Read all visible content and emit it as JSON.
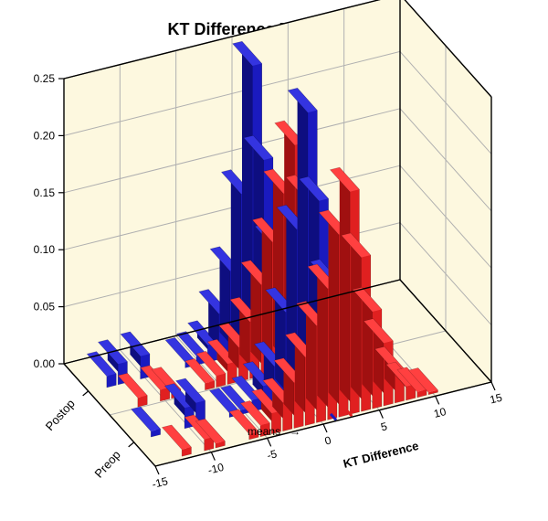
{
  "chart": {
    "type": "3d-bar-histogram",
    "title": "KT Difference Distributions",
    "title_fontsize": 18,
    "background_color": "#ffffff",
    "floor_color": "#fdf8df",
    "wall_color": "#fdf8df",
    "grid_color": "#b0b0b0",
    "box_line_color": "#000000",
    "x_axis": {
      "label": "KT Difference",
      "min": -15,
      "max": 15,
      "ticks": [
        -15,
        -10,
        -5,
        0,
        5,
        10,
        15
      ]
    },
    "y_axis": {
      "label_near": "Preop",
      "label_far": "Postop",
      "rows": [
        "front",
        "back"
      ]
    },
    "z_axis": {
      "min": 0.0,
      "max": 0.25,
      "ticks": [
        0.0,
        0.05,
        0.1,
        0.15,
        0.2,
        0.25
      ],
      "tick_labels": [
        "0.00",
        "0.05",
        "0.10",
        "0.15",
        "0.20",
        "0.25"
      ]
    },
    "series": {
      "blue": {
        "color_face": "#1a1abf",
        "color_top": "#3434e0",
        "color_side": "#0e0e80",
        "front_row_heights": {
          "-13": 0.005,
          "-12": 0.0,
          "-11": 0.0,
          "-10": 0.018,
          "-9": 0.02,
          "-8": 0.0,
          "-7": 0.0,
          "-6": 0.004,
          "-5": 0.004,
          "-4": 0.01,
          "-3": 0.02,
          "-2": 0.035,
          "-1": 0.08,
          "0": 0.15,
          "1": 0.25,
          "2": 0.17,
          "3": 0.095,
          "4": 0.04,
          "5": 0.015,
          "6": 0.002
        },
        "back_row_heights": {
          "-13": 0.01,
          "-12": 0.018,
          "-11": 0.0,
          "-10": 0.02,
          "-9": 0.0,
          "-8": 0.0,
          "-7": 0.0,
          "-6": 0.005,
          "-5": 0.008,
          "-4": 0.015,
          "-3": 0.04,
          "-2": 0.075,
          "-1": 0.14,
          "0": 0.25,
          "1": 0.165,
          "2": 0.085,
          "3": 0.035,
          "4": 0.01,
          "5": 0.004
        }
      },
      "red": {
        "color_face": "#e02020",
        "color_top": "#ff4040",
        "color_side": "#a01010",
        "front_row_heights": {
          "-12": 0.006,
          "-11": 0.0,
          "-10": 0.01,
          "-9": 0.004,
          "-8": 0.0,
          "-7": 0.0,
          "-6": 0.005,
          "-5": 0.01,
          "-4": 0.018,
          "-3": 0.025,
          "-2": 0.04,
          "-1": 0.06,
          "0": 0.085,
          "1": 0.115,
          "2": 0.16,
          "3": 0.195,
          "4": 0.135,
          "5": 0.085,
          "6": 0.055,
          "7": 0.028,
          "8": 0.012,
          "9": 0.005,
          "10": 0.002
        },
        "back_row_heights": {
          "-12": 0.008,
          "-11": 0.0,
          "-10": 0.01,
          "-9": 0.006,
          "-8": 0.0,
          "-7": 0.0,
          "-6": 0.006,
          "-5": 0.01,
          "-4": 0.018,
          "-3": 0.03,
          "-2": 0.05,
          "-1": 0.08,
          "0": 0.115,
          "1": 0.155,
          "2": 0.195,
          "3": 0.145,
          "4": 0.09,
          "5": 0.05,
          "6": 0.02,
          "7": 0.008,
          "8": 0.003
        }
      }
    },
    "means": {
      "label": "means",
      "arrow": "→",
      "blue_mean_x": 1.2,
      "red_mean_x": 2.6,
      "marker_length": 10
    },
    "bar_width_x": 0.85,
    "row_depth": 0.65
  }
}
